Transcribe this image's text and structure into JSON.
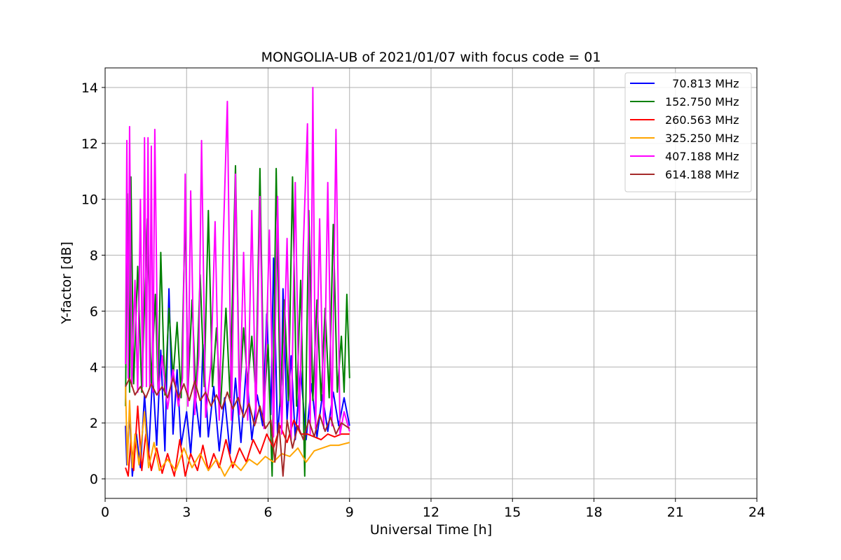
{
  "chart_data": {
    "type": "line",
    "title": "MONGOLIA-UB of 2021/01/07 with focus code = 01",
    "xlabel": "Universal Time [h]",
    "ylabel": "Y-factor [dB]",
    "xlim": [
      0,
      24
    ],
    "ylim": [
      -0.7,
      14.7
    ],
    "xticks": [
      0,
      3,
      6,
      9,
      12,
      15,
      18,
      21,
      24
    ],
    "yticks": [
      0,
      2,
      4,
      6,
      8,
      10,
      12,
      14
    ],
    "grid": true,
    "legend_position": "top-right",
    "series": [
      {
        "name": "  70.813 MHz",
        "color": "#0000ff",
        "points": [
          [
            0.75,
            1.9
          ],
          [
            0.8,
            0.5
          ],
          [
            0.9,
            2.4
          ],
          [
            1.0,
            0.1
          ],
          [
            1.15,
            1.6
          ],
          [
            1.3,
            0.4
          ],
          [
            1.45,
            3.0
          ],
          [
            1.6,
            0.8
          ],
          [
            1.75,
            3.8
          ],
          [
            1.9,
            1.2
          ],
          [
            2.05,
            4.6
          ],
          [
            2.2,
            1.0
          ],
          [
            2.35,
            6.8
          ],
          [
            2.5,
            1.6
          ],
          [
            2.65,
            3.9
          ],
          [
            2.8,
            1.2
          ],
          [
            3.0,
            2.4
          ],
          [
            3.15,
            0.9
          ],
          [
            3.3,
            3.1
          ],
          [
            3.5,
            1.5
          ],
          [
            3.6,
            4.8
          ],
          [
            3.8,
            1.5
          ],
          [
            4.0,
            3.3
          ],
          [
            4.2,
            1.0
          ],
          [
            4.4,
            2.9
          ],
          [
            4.6,
            0.9
          ],
          [
            4.8,
            3.6
          ],
          [
            5.0,
            1.3
          ],
          [
            5.2,
            4.0
          ],
          [
            5.4,
            1.4
          ],
          [
            5.6,
            3.0
          ],
          [
            5.8,
            1.9
          ],
          [
            5.95,
            5.9
          ],
          [
            6.1,
            2.3
          ],
          [
            6.2,
            7.9
          ],
          [
            6.35,
            1.5
          ],
          [
            6.5,
            3.6
          ],
          [
            6.55,
            6.8
          ],
          [
            6.7,
            2.1
          ],
          [
            6.85,
            4.4
          ],
          [
            7.0,
            1.4
          ],
          [
            7.2,
            3.9
          ],
          [
            7.4,
            1.4
          ],
          [
            7.6,
            3.4
          ],
          [
            7.8,
            1.5
          ],
          [
            8.0,
            3.0
          ],
          [
            8.2,
            1.7
          ],
          [
            8.4,
            3.1
          ],
          [
            8.6,
            1.9
          ],
          [
            8.8,
            2.9
          ],
          [
            9.0,
            1.9
          ]
        ]
      },
      {
        "name": "152.750 MHz",
        "color": "#008000",
        "points": [
          [
            0.75,
            2.6
          ],
          [
            0.82,
            10.2
          ],
          [
            0.9,
            3.1
          ],
          [
            0.95,
            10.8
          ],
          [
            1.05,
            3.4
          ],
          [
            1.2,
            7.6
          ],
          [
            1.35,
            3.1
          ],
          [
            1.55,
            9.3
          ],
          [
            1.7,
            3.4
          ],
          [
            1.85,
            6.6
          ],
          [
            1.95,
            3.1
          ],
          [
            2.05,
            8.1
          ],
          [
            2.2,
            3.0
          ],
          [
            2.35,
            6.1
          ],
          [
            2.5,
            3.6
          ],
          [
            2.65,
            5.6
          ],
          [
            2.8,
            2.9
          ],
          [
            2.95,
            9.6
          ],
          [
            3.05,
            3.1
          ],
          [
            3.2,
            6.4
          ],
          [
            3.35,
            2.9
          ],
          [
            3.5,
            7.3
          ],
          [
            3.65,
            3.3
          ],
          [
            3.8,
            9.6
          ],
          [
            3.95,
            3.3
          ],
          [
            4.1,
            5.4
          ],
          [
            4.25,
            2.6
          ],
          [
            4.45,
            6.1
          ],
          [
            4.6,
            2.9
          ],
          [
            4.8,
            11.2
          ],
          [
            4.95,
            2.9
          ],
          [
            5.1,
            5.4
          ],
          [
            5.25,
            3.4
          ],
          [
            5.4,
            5.1
          ],
          [
            5.55,
            3.0
          ],
          [
            5.7,
            11.1
          ],
          [
            5.85,
            2.6
          ],
          [
            6.0,
            4.8
          ],
          [
            6.15,
            0.1
          ],
          [
            6.3,
            11.1
          ],
          [
            6.45,
            2.6
          ],
          [
            6.6,
            6.4
          ],
          [
            6.75,
            2.8
          ],
          [
            6.9,
            10.8
          ],
          [
            7.05,
            2.6
          ],
          [
            7.2,
            7.1
          ],
          [
            7.35,
            0.1
          ],
          [
            7.5,
            9.6
          ],
          [
            7.65,
            2.8
          ],
          [
            7.8,
            6.4
          ],
          [
            7.95,
            2.8
          ],
          [
            8.1,
            6.1
          ],
          [
            8.25,
            2.9
          ],
          [
            8.4,
            9.1
          ],
          [
            8.55,
            3.1
          ],
          [
            8.7,
            5.1
          ],
          [
            8.8,
            3.1
          ],
          [
            8.9,
            6.6
          ],
          [
            9.0,
            3.6
          ]
        ]
      },
      {
        "name": "260.563 MHz",
        "color": "#ff0000",
        "points": [
          [
            0.75,
            0.4
          ],
          [
            0.85,
            0.1
          ],
          [
            0.95,
            1.4
          ],
          [
            1.05,
            0.3
          ],
          [
            1.2,
            2.6
          ],
          [
            1.35,
            0.3
          ],
          [
            1.5,
            1.6
          ],
          [
            1.7,
            0.3
          ],
          [
            1.9,
            1.1
          ],
          [
            2.1,
            0.2
          ],
          [
            2.3,
            0.9
          ],
          [
            2.55,
            0.1
          ],
          [
            2.75,
            1.4
          ],
          [
            2.95,
            0.1
          ],
          [
            3.15,
            0.9
          ],
          [
            3.4,
            0.3
          ],
          [
            3.6,
            1.2
          ],
          [
            3.8,
            0.3
          ],
          [
            4.0,
            0.9
          ],
          [
            4.2,
            0.4
          ],
          [
            4.45,
            1.4
          ],
          [
            4.7,
            0.4
          ],
          [
            4.95,
            1.1
          ],
          [
            5.2,
            0.6
          ],
          [
            5.45,
            1.4
          ],
          [
            5.7,
            0.9
          ],
          [
            5.95,
            1.6
          ],
          [
            6.2,
            1.1
          ],
          [
            6.45,
            1.9
          ],
          [
            6.7,
            1.3
          ],
          [
            6.95,
            2.1
          ],
          [
            7.2,
            1.6
          ],
          [
            7.45,
            1.6
          ],
          [
            7.7,
            1.5
          ],
          [
            7.95,
            1.4
          ],
          [
            8.2,
            1.6
          ],
          [
            8.45,
            1.5
          ],
          [
            8.7,
            1.6
          ],
          [
            9.0,
            1.6
          ]
        ]
      },
      {
        "name": "325.250 MHz",
        "color": "#ffa500",
        "points": [
          [
            0.75,
            3.3
          ],
          [
            0.82,
            0.5
          ],
          [
            0.9,
            2.8
          ],
          [
            1.0,
            0.4
          ],
          [
            1.1,
            1.6
          ],
          [
            1.25,
            0.5
          ],
          [
            1.45,
            2.4
          ],
          [
            1.6,
            0.4
          ],
          [
            1.8,
            1.3
          ],
          [
            2.0,
            0.3
          ],
          [
            2.3,
            0.7
          ],
          [
            2.6,
            0.3
          ],
          [
            2.9,
            1.1
          ],
          [
            3.2,
            0.4
          ],
          [
            3.5,
            0.9
          ],
          [
            3.8,
            0.3
          ],
          [
            4.1,
            0.7
          ],
          [
            4.4,
            0.1
          ],
          [
            4.7,
            0.6
          ],
          [
            5.0,
            0.3
          ],
          [
            5.3,
            0.7
          ],
          [
            5.6,
            0.5
          ],
          [
            5.9,
            0.8
          ],
          [
            6.2,
            0.6
          ],
          [
            6.5,
            0.9
          ],
          [
            6.8,
            0.8
          ],
          [
            7.1,
            1.1
          ],
          [
            7.4,
            0.6
          ],
          [
            7.7,
            1.0
          ],
          [
            8.0,
            1.1
          ],
          [
            8.3,
            1.2
          ],
          [
            8.6,
            1.2
          ],
          [
            9.0,
            1.3
          ]
        ]
      },
      {
        "name": "407.188 MHz",
        "color": "#ff00ff",
        "points": [
          [
            0.75,
            4.1
          ],
          [
            0.8,
            12.1
          ],
          [
            0.85,
            3.6
          ],
          [
            0.9,
            12.6
          ],
          [
            0.98,
            3.3
          ],
          [
            1.1,
            7.1
          ],
          [
            1.2,
            3.1
          ],
          [
            1.3,
            10.0
          ],
          [
            1.38,
            3.3
          ],
          [
            1.45,
            12.2
          ],
          [
            1.52,
            3.3
          ],
          [
            1.58,
            12.2
          ],
          [
            1.64,
            3.3
          ],
          [
            1.7,
            11.9
          ],
          [
            1.76,
            3.1
          ],
          [
            1.83,
            12.5
          ],
          [
            1.95,
            3.0
          ],
          [
            2.1,
            4.4
          ],
          [
            2.3,
            2.5
          ],
          [
            2.5,
            3.9
          ],
          [
            2.7,
            2.6
          ],
          [
            2.85,
            3.6
          ],
          [
            2.95,
            10.9
          ],
          [
            3.05,
            2.6
          ],
          [
            3.15,
            10.3
          ],
          [
            3.3,
            2.3
          ],
          [
            3.45,
            4.4
          ],
          [
            3.55,
            12.1
          ],
          [
            3.7,
            2.2
          ],
          [
            3.9,
            4.1
          ],
          [
            4.05,
            9.2
          ],
          [
            4.2,
            2.1
          ],
          [
            4.35,
            8.6
          ],
          [
            4.5,
            13.5
          ],
          [
            4.65,
            2.1
          ],
          [
            4.8,
            10.9
          ],
          [
            4.95,
            2.3
          ],
          [
            5.1,
            8.1
          ],
          [
            5.25,
            2.1
          ],
          [
            5.4,
            9.6
          ],
          [
            5.55,
            2.0
          ],
          [
            5.7,
            10.1
          ],
          [
            5.85,
            1.8
          ],
          [
            6.05,
            8.9
          ],
          [
            6.2,
            1.5
          ],
          [
            6.35,
            10.1
          ],
          [
            6.5,
            1.6
          ],
          [
            6.7,
            8.6
          ],
          [
            6.85,
            1.4
          ],
          [
            7.0,
            10.6
          ],
          [
            7.15,
            1.8
          ],
          [
            7.3,
            8.4
          ],
          [
            7.45,
            12.7
          ],
          [
            7.55,
            1.6
          ],
          [
            7.65,
            14.0
          ],
          [
            7.75,
            1.8
          ],
          [
            7.9,
            9.3
          ],
          [
            8.05,
            1.8
          ],
          [
            8.2,
            10.6
          ],
          [
            8.35,
            1.9
          ],
          [
            8.5,
            12.5
          ],
          [
            8.65,
            1.6
          ],
          [
            8.8,
            2.4
          ],
          [
            9.0,
            1.7
          ]
        ]
      },
      {
        "name": "614.188 MHz",
        "color": "#a52a2a",
        "points": [
          [
            0.75,
            3.3
          ],
          [
            0.9,
            3.6
          ],
          [
            1.1,
            3.0
          ],
          [
            1.3,
            3.3
          ],
          [
            1.5,
            2.9
          ],
          [
            1.7,
            3.4
          ],
          [
            1.9,
            3.0
          ],
          [
            2.1,
            3.3
          ],
          [
            2.3,
            2.9
          ],
          [
            2.5,
            3.6
          ],
          [
            2.7,
            2.9
          ],
          [
            2.9,
            3.4
          ],
          [
            3.1,
            2.8
          ],
          [
            3.3,
            3.5
          ],
          [
            3.5,
            2.8
          ],
          [
            3.7,
            3.1
          ],
          [
            3.9,
            2.6
          ],
          [
            4.1,
            3.0
          ],
          [
            4.3,
            2.5
          ],
          [
            4.5,
            3.1
          ],
          [
            4.7,
            2.5
          ],
          [
            4.9,
            2.9
          ],
          [
            5.1,
            2.2
          ],
          [
            5.3,
            2.7
          ],
          [
            5.5,
            1.9
          ],
          [
            5.7,
            2.6
          ],
          [
            5.9,
            1.8
          ],
          [
            6.1,
            2.1
          ],
          [
            6.25,
            0.6
          ],
          [
            6.4,
            2.0
          ],
          [
            6.55,
            0.1
          ],
          [
            6.7,
            2.1
          ],
          [
            6.9,
            1.1
          ],
          [
            7.1,
            1.9
          ],
          [
            7.3,
            1.4
          ],
          [
            7.5,
            2.1
          ],
          [
            7.7,
            1.5
          ],
          [
            7.9,
            2.3
          ],
          [
            8.1,
            1.7
          ],
          [
            8.3,
            2.2
          ],
          [
            8.5,
            1.6
          ],
          [
            8.7,
            2.0
          ],
          [
            9.0,
            1.8
          ]
        ]
      }
    ]
  }
}
